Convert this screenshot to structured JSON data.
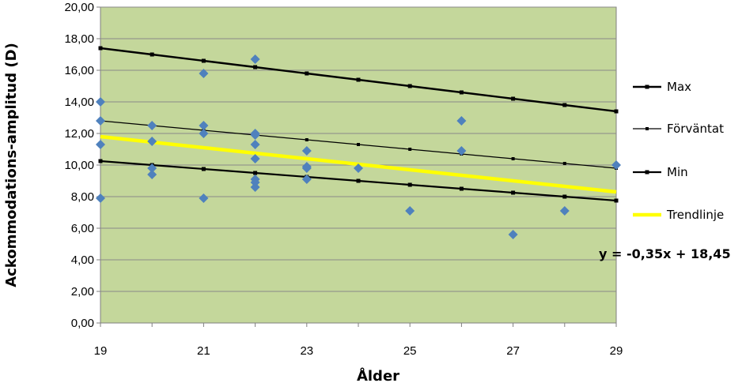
{
  "chart_data": {
    "type": "scatter",
    "xlabel": "Ålder",
    "ylabel": "Ackommodations-amplitud (D)",
    "xlim": [
      19,
      29
    ],
    "ylim": [
      0,
      20
    ],
    "x_ticks": [
      "19",
      "21",
      "23",
      "25",
      "27",
      "29"
    ],
    "y_ticks": [
      "0,00",
      "2,00",
      "4,00",
      "6,00",
      "8,00",
      "10,00",
      "12,00",
      "14,00",
      "16,00",
      "18,00",
      "20,00"
    ],
    "grid": "horizontal",
    "plot_background": "#c4d79b",
    "points": {
      "color": "#4f81bd",
      "x": [
        19,
        19,
        19,
        19,
        20,
        20,
        20,
        20,
        21,
        21,
        21,
        21,
        22,
        22,
        22,
        22,
        22,
        22,
        22,
        22,
        23,
        23,
        23,
        23,
        24,
        25,
        26,
        26,
        27,
        28,
        29
      ],
      "y": [
        14.0,
        12.8,
        11.3,
        7.9,
        12.5,
        11.5,
        9.8,
        9.4,
        15.8,
        12.5,
        12.0,
        7.9,
        16.7,
        12.0,
        11.3,
        10.4,
        9.1,
        8.9,
        8.6,
        11.9,
        10.9,
        9.9,
        9.8,
        9.1,
        9.8,
        7.1,
        12.8,
        10.9,
        5.6,
        7.1,
        10.0
      ]
    },
    "series": [
      {
        "name": "Max",
        "color": "#000000",
        "x": [
          19,
          20,
          21,
          22,
          23,
          24,
          25,
          26,
          27,
          28,
          29
        ],
        "values": [
          17.4,
          17.0,
          16.6,
          16.2,
          15.8,
          15.4,
          15.0,
          14.6,
          14.2,
          13.8,
          13.4
        ]
      },
      {
        "name": "Förväntat",
        "color": "#000000",
        "x": [
          19,
          20,
          21,
          22,
          23,
          24,
          25,
          26,
          27,
          28,
          29
        ],
        "values": [
          12.8,
          12.5,
          12.2,
          11.9,
          11.6,
          11.3,
          11.0,
          10.7,
          10.4,
          10.1,
          9.8
        ]
      },
      {
        "name": "Min",
        "color": "#000000",
        "x": [
          19,
          20,
          21,
          22,
          23,
          24,
          25,
          26,
          27,
          28,
          29
        ],
        "values": [
          10.25,
          10.0,
          9.75,
          9.5,
          9.25,
          9.0,
          8.75,
          8.5,
          8.25,
          8.0,
          7.75
        ]
      },
      {
        "name": "Trendlinje",
        "color": "#ffff00",
        "x": [
          19,
          29
        ],
        "values": [
          11.8,
          8.3
        ]
      }
    ],
    "legend_placement": "right",
    "annotation": "y = -0,35x + 18,45"
  }
}
